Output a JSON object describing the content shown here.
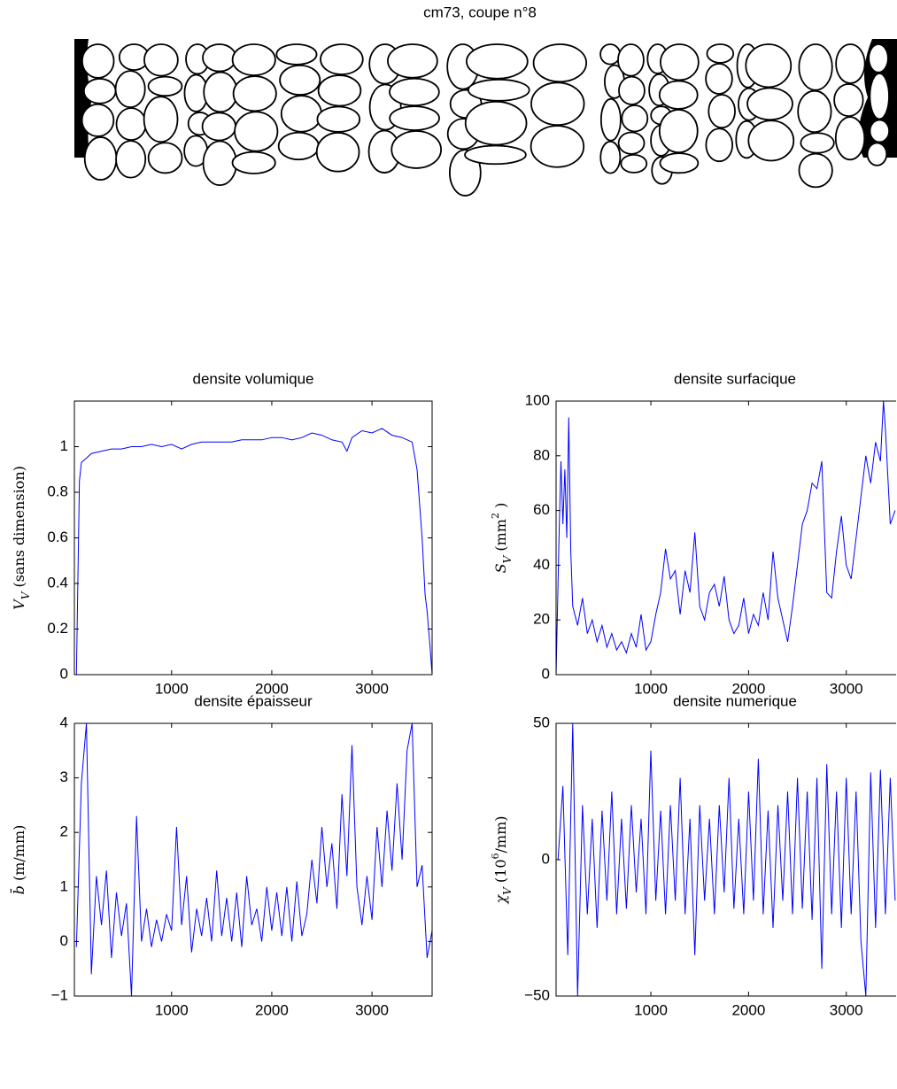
{
  "image": {
    "title": "cm73, coupe n°8"
  },
  "chart_data": [
    {
      "type": "line",
      "title": "densite volumique",
      "ylabel": [
        {
          "text": "V"
        },
        {
          "text": "V",
          "sub": true
        },
        {
          "text": "  (sans dimension)"
        }
      ],
      "color": "#0000ff",
      "xlim": [
        30,
        3600
      ],
      "ylim": [
        0,
        1.2
      ],
      "xticks": [
        1000,
        2000,
        3000
      ],
      "yticks": [
        0,
        0.2,
        0.4,
        0.6,
        0.8,
        1
      ],
      "x": [
        30,
        50,
        80,
        100,
        150,
        200,
        300,
        400,
        500,
        600,
        700,
        800,
        900,
        1000,
        1100,
        1200,
        1300,
        1400,
        1500,
        1600,
        1700,
        1800,
        1900,
        2000,
        2100,
        2200,
        2300,
        2400,
        2500,
        2600,
        2700,
        2750,
        2800,
        2900,
        3000,
        3100,
        3200,
        3300,
        3400,
        3450,
        3500,
        3530,
        3550,
        3580,
        3600
      ],
      "values": [
        0,
        0,
        0.85,
        0.93,
        0.95,
        0.97,
        0.98,
        0.99,
        0.99,
        1.0,
        1.0,
        1.01,
        1.0,
        1.01,
        0.99,
        1.01,
        1.02,
        1.02,
        1.02,
        1.02,
        1.03,
        1.03,
        1.03,
        1.04,
        1.04,
        1.03,
        1.04,
        1.06,
        1.05,
        1.03,
        1.02,
        0.98,
        1.04,
        1.07,
        1.06,
        1.08,
        1.05,
        1.04,
        1.02,
        0.9,
        0.6,
        0.35,
        0.28,
        0.12,
        0
      ]
    },
    {
      "type": "line",
      "title": "densite surfacique",
      "ylabel": [
        {
          "text": "S"
        },
        {
          "text": "V",
          "sub": true
        },
        {
          "text": "  (mm"
        },
        {
          "text": "2",
          "sup": true
        },
        {
          "text": " )"
        }
      ],
      "color": "#0000ff",
      "xlim": [
        30,
        3510
      ],
      "ylim": [
        0,
        100
      ],
      "xticks": [
        1000,
        2000,
        3000
      ],
      "yticks": [
        0,
        20,
        40,
        60,
        80,
        100
      ],
      "x": [
        30,
        60,
        80,
        100,
        120,
        140,
        160,
        180,
        200,
        250,
        300,
        350,
        400,
        450,
        500,
        550,
        600,
        650,
        700,
        750,
        800,
        850,
        900,
        950,
        1000,
        1050,
        1100,
        1150,
        1200,
        1250,
        1300,
        1350,
        1400,
        1450,
        1500,
        1550,
        1600,
        1650,
        1700,
        1750,
        1800,
        1850,
        1900,
        1950,
        2000,
        2050,
        2100,
        2150,
        2200,
        2250,
        2300,
        2350,
        2400,
        2450,
        2500,
        2550,
        2600,
        2650,
        2700,
        2750,
        2800,
        2850,
        2900,
        2950,
        3000,
        3050,
        3100,
        3150,
        3200,
        3250,
        3300,
        3350,
        3380,
        3400,
        3450,
        3500
      ],
      "values": [
        0,
        50,
        78,
        55,
        75,
        50,
        94,
        45,
        25,
        18,
        28,
        15,
        20,
        12,
        18,
        10,
        15,
        9,
        12,
        8,
        15,
        10,
        22,
        9,
        12,
        22,
        30,
        46,
        35,
        38,
        22,
        38,
        30,
        52,
        25,
        20,
        30,
        33,
        25,
        36,
        20,
        15,
        18,
        28,
        15,
        22,
        18,
        30,
        20,
        45,
        28,
        20,
        12,
        25,
        40,
        55,
        60,
        70,
        68,
        78,
        30,
        28,
        45,
        58,
        40,
        35,
        50,
        65,
        80,
        70,
        85,
        78,
        100,
        90,
        55,
        60
      ]
    },
    {
      "type": "line",
      "title": "densite épaisseur",
      "ylabel": [
        {
          "text": "b̄"
        },
        {
          "text": "  (m/mm)"
        }
      ],
      "color": "#0000ff",
      "xlim": [
        30,
        3600
      ],
      "ylim": [
        -1,
        4
      ],
      "xticks": [
        1000,
        2000,
        3000
      ],
      "yticks": [
        {
          "value": -1,
          "label": "−1"
        },
        0,
        1,
        2,
        3,
        4
      ],
      "x": [
        50,
        100,
        150,
        200,
        250,
        300,
        350,
        400,
        450,
        500,
        550,
        600,
        650,
        700,
        750,
        800,
        850,
        900,
        950,
        1000,
        1050,
        1100,
        1150,
        1200,
        1250,
        1300,
        1350,
        1400,
        1450,
        1500,
        1550,
        1600,
        1650,
        1700,
        1750,
        1800,
        1850,
        1900,
        1950,
        2000,
        2050,
        2100,
        2150,
        2200,
        2250,
        2300,
        2350,
        2400,
        2450,
        2500,
        2550,
        2600,
        2650,
        2700,
        2750,
        2800,
        2850,
        2900,
        2950,
        3000,
        3050,
        3100,
        3150,
        3200,
        3250,
        3300,
        3350,
        3400,
        3450,
        3500,
        3550,
        3600
      ],
      "values": [
        -0.1,
        2.9,
        4.0,
        -0.6,
        1.2,
        0.3,
        1.3,
        -0.3,
        0.9,
        0.1,
        0.7,
        -1.0,
        2.3,
        0.0,
        0.6,
        -0.1,
        0.4,
        0.0,
        0.5,
        0.2,
        2.1,
        0.3,
        1.2,
        -0.2,
        0.6,
        0.1,
        0.8,
        0.0,
        1.3,
        0.1,
        0.8,
        0.0,
        0.9,
        -0.1,
        1.2,
        0.3,
        0.6,
        0.0,
        1.0,
        0.2,
        0.9,
        0.1,
        1.0,
        0.0,
        1.1,
        0.1,
        0.5,
        1.5,
        0.7,
        2.1,
        1.0,
        1.8,
        0.6,
        2.7,
        1.2,
        3.6,
        1.0,
        0.3,
        1.2,
        0.4,
        2.1,
        1.0,
        2.4,
        1.3,
        2.9,
        1.5,
        3.5,
        4.0,
        1.0,
        1.4,
        -0.3,
        0.2
      ]
    },
    {
      "type": "line",
      "title": "densite numerique",
      "ylabel": [
        {
          "text": "χ"
        },
        {
          "text": "V",
          "sub": true
        },
        {
          "text": "  (10"
        },
        {
          "text": "6",
          "sup": true
        },
        {
          "text": "/mm)"
        }
      ],
      "color": "#0000ff",
      "xlim": [
        30,
        3510
      ],
      "ylim": [
        -50,
        50
      ],
      "xticks": [
        1000,
        2000,
        3000
      ],
      "yticks": [
        {
          "value": -50,
          "label": "−50"
        },
        0,
        50
      ],
      "x": [
        50,
        100,
        150,
        200,
        250,
        300,
        350,
        400,
        450,
        500,
        550,
        600,
        650,
        700,
        750,
        800,
        850,
        900,
        950,
        1000,
        1050,
        1100,
        1150,
        1200,
        1250,
        1300,
        1350,
        1400,
        1450,
        1500,
        1550,
        1600,
        1650,
        1700,
        1750,
        1800,
        1850,
        1900,
        1950,
        2000,
        2050,
        2100,
        2150,
        2200,
        2250,
        2300,
        2350,
        2400,
        2450,
        2500,
        2550,
        2600,
        2650,
        2700,
        2750,
        2800,
        2850,
        2900,
        2950,
        3000,
        3050,
        3100,
        3150,
        3200,
        3250,
        3300,
        3350,
        3400,
        3450,
        3500
      ],
      "values": [
        0,
        27,
        -35,
        50,
        -50,
        20,
        -20,
        15,
        -25,
        18,
        -15,
        25,
        -20,
        15,
        -18,
        20,
        -12,
        15,
        -20,
        40,
        -15,
        18,
        -20,
        20,
        -15,
        30,
        -20,
        15,
        -35,
        20,
        -15,
        15,
        -20,
        20,
        -12,
        30,
        -18,
        15,
        -20,
        25,
        -15,
        37,
        -20,
        18,
        -25,
        20,
        -15,
        25,
        -20,
        30,
        -18,
        25,
        -22,
        30,
        -40,
        35,
        -20,
        25,
        -25,
        30,
        -20,
        25,
        -30,
        -50,
        32,
        -25,
        33,
        -20,
        30,
        -15
      ]
    }
  ]
}
